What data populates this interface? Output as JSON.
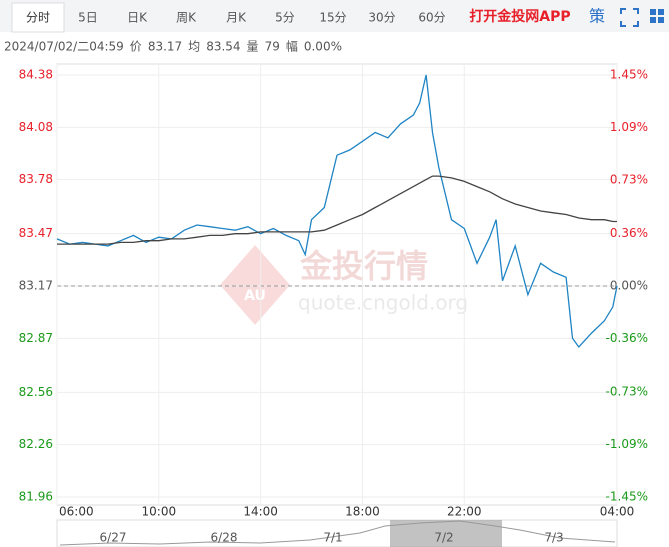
{
  "tabs": [
    "分时",
    "5日",
    "日K",
    "周K",
    "月K",
    "5分",
    "15分",
    "30分",
    "60分"
  ],
  "app_link": "打开金投网APP",
  "strategy": "策",
  "info": [
    "2024/07/02/二04:59",
    "价",
    "83.17",
    "均",
    "83.54",
    "量",
    "79",
    "幅",
    "0.00%"
  ],
  "watermark": {
    "logo": "AU",
    "name": "金投行情",
    "url": "quote.cngold.org"
  },
  "navigator": {
    "labels": [
      "6/27",
      "6/28",
      "7/1",
      "7/2",
      "7/3"
    ]
  },
  "chart_data": {
    "type": "line",
    "x": [
      "06:00",
      "06:30",
      "07:00",
      "07:30",
      "08:00",
      "08:30",
      "09:00",
      "09:30",
      "10:00",
      "10:30",
      "11:00",
      "11:30",
      "12:00",
      "12:30",
      "13:00",
      "13:30",
      "14:00",
      "14:30",
      "15:00",
      "15:30",
      "15:45",
      "16:00",
      "16:30",
      "17:00",
      "17:30",
      "18:00",
      "18:30",
      "19:00",
      "19:30",
      "20:00",
      "20:15",
      "20:30",
      "20:45",
      "21:00",
      "21:30",
      "22:00",
      "22:30",
      "23:00",
      "23:15",
      "23:30",
      "00:00",
      "00:30",
      "01:00",
      "01:30",
      "02:00",
      "02:15",
      "02:30",
      "03:00",
      "03:30",
      "03:50",
      "04:00"
    ],
    "xlim": [
      "06:00",
      "04:00"
    ],
    "xticks": [
      "06:00",
      "10:00",
      "14:00",
      "18:00",
      "22:00",
      "04:00"
    ],
    "series": [
      {
        "name": "价",
        "color": "#1f84c4",
        "values": [
          83.44,
          83.41,
          83.42,
          83.41,
          83.4,
          83.43,
          83.46,
          83.42,
          83.45,
          83.44,
          83.49,
          83.52,
          83.51,
          83.5,
          83.49,
          83.51,
          83.47,
          83.5,
          83.46,
          83.43,
          83.35,
          83.55,
          83.62,
          83.92,
          83.95,
          84.0,
          84.05,
          84.02,
          84.1,
          84.15,
          84.22,
          84.38,
          84.05,
          83.85,
          83.55,
          83.5,
          83.3,
          83.45,
          83.55,
          83.2,
          83.4,
          83.12,
          83.3,
          83.25,
          83.22,
          82.87,
          82.82,
          82.9,
          82.97,
          83.05,
          83.17
        ]
      },
      {
        "name": "均",
        "color": "#444444",
        "values": [
          83.41,
          83.41,
          83.41,
          83.41,
          83.41,
          83.42,
          83.42,
          83.43,
          83.43,
          83.44,
          83.44,
          83.45,
          83.46,
          83.46,
          83.47,
          83.47,
          83.48,
          83.48,
          83.48,
          83.48,
          83.48,
          83.48,
          83.49,
          83.52,
          83.55,
          83.58,
          83.62,
          83.66,
          83.7,
          83.74,
          83.76,
          83.78,
          83.8,
          83.8,
          83.79,
          83.77,
          83.74,
          83.71,
          83.69,
          83.67,
          83.64,
          83.62,
          83.6,
          83.59,
          83.58,
          83.57,
          83.56,
          83.55,
          83.55,
          83.54,
          83.54
        ]
      }
    ],
    "ylim": [
      81.96,
      84.38
    ],
    "yticks": [
      84.38,
      84.08,
      83.78,
      83.47,
      83.17,
      82.87,
      82.56,
      82.26,
      81.96
    ],
    "y2lim": [
      -1.45,
      1.45
    ],
    "y2ticks": [
      {
        "value": 1.45,
        "label": "1.45%"
      },
      {
        "value": 1.09,
        "label": "1.09%"
      },
      {
        "value": 0.73,
        "label": "0.73%"
      },
      {
        "value": 0.36,
        "label": "0.36%"
      },
      {
        "value": 0,
        "label": "0.00%"
      },
      {
        "value": -0.36,
        "label": "-0.36%"
      },
      {
        "value": -0.73,
        "label": "-0.73%"
      },
      {
        "value": -1.09,
        "label": "-1.09%"
      },
      {
        "value": -1.45,
        "label": "-1.45%"
      }
    ],
    "grid": true
  }
}
